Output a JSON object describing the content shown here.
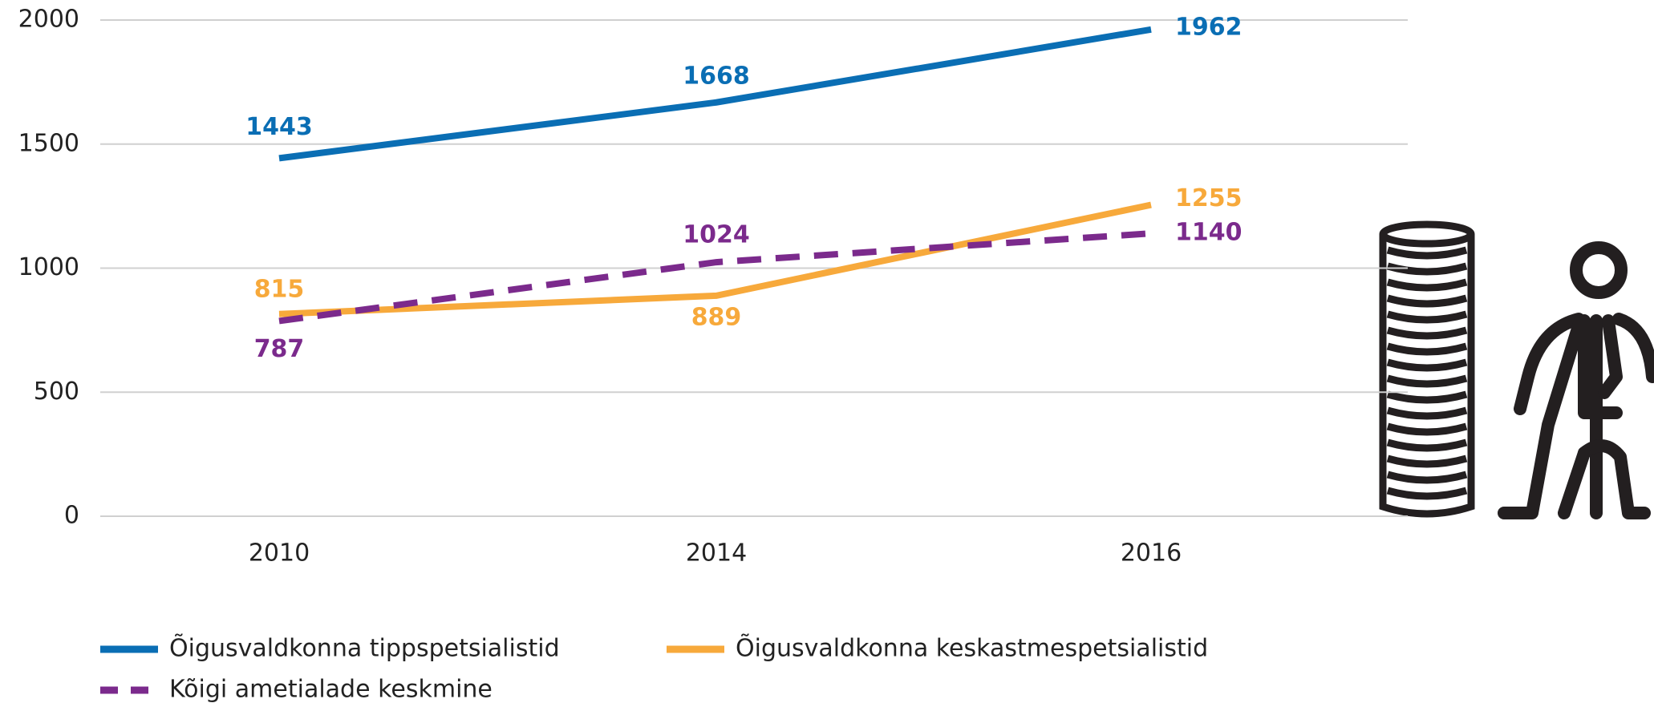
{
  "chart_data": {
    "type": "line",
    "categories": [
      "2010",
      "2014",
      "2016"
    ],
    "series": [
      {
        "name": "Õigusvaldkonna tippspetsialistid",
        "color": "#0a6eb4",
        "dash": false,
        "values": [
          1443,
          1668,
          1962
        ]
      },
      {
        "name": "Õigusvaldkonna keskastmespetsialistid",
        "color": "#f7a93b",
        "dash": false,
        "values": [
          815,
          889,
          1255
        ]
      },
      {
        "name": "Kõigi ametialade keskmine",
        "color": "#7b2a8c",
        "dash": true,
        "values": [
          787,
          1024,
          1140
        ]
      }
    ],
    "ylim": [
      0,
      2000
    ],
    "yticks": [
      0,
      500,
      1000,
      1500,
      2000
    ],
    "grid": true,
    "legend": "bottom"
  }
}
